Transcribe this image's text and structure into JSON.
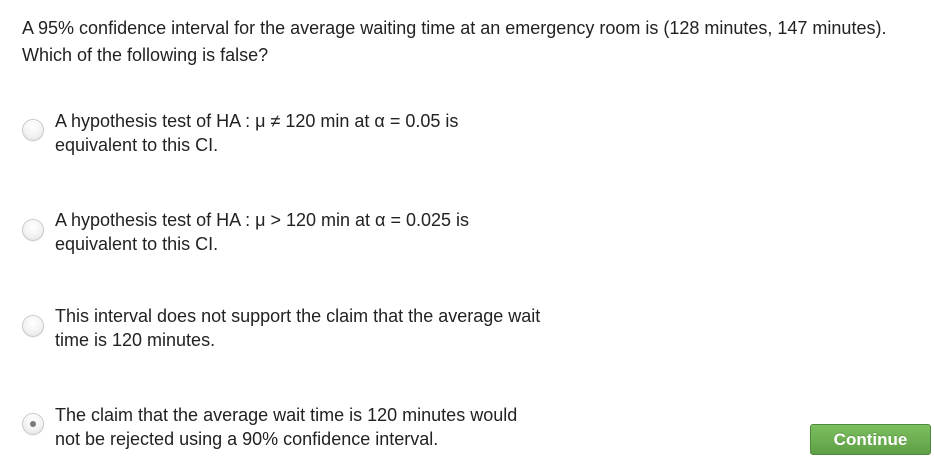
{
  "question": {
    "text": "A 95% confidence interval for the average waiting time at an emergency room is (128 minutes, 147 minutes). Which of the following is false?"
  },
  "options": [
    {
      "line1": "A hypothesis test of HA : μ ≠ 120 min at α = 0.05 is",
      "line2": "equivalent to this CI.",
      "selected": false
    },
    {
      "line1": "A hypothesis test of HA : μ > 120 min at α = 0.025 is",
      "line2": "equivalent to this CI.",
      "selected": false
    },
    {
      "line1": "This interval does not support the claim that the average wait",
      "line2": "time is 120 minutes.",
      "selected": false
    },
    {
      "line1": "The claim that the average wait time is 120 minutes would",
      "line2": "not be rejected using a 90% confidence interval.",
      "selected": true
    }
  ],
  "continue_button": {
    "label": "Continue",
    "color": "#6aad50"
  }
}
